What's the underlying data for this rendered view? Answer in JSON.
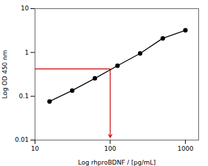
{
  "chart_data": {
    "type": "line",
    "x_label": "Log rhproBDNF / [pg/mL]",
    "y_label": "Log OD 450 nm",
    "log": true,
    "grid": false,
    "x": [
      15.6,
      31.2,
      62.5,
      125,
      250,
      500,
      1000
    ],
    "series": [
      {
        "values": [
          0.076,
          0.135,
          0.256,
          0.498,
          0.95,
          2.1,
          3.2
        ],
        "color": "#000000",
        "marker": "circle"
      }
    ],
    "xlim": [
      10,
      1500
    ],
    "ylim": [
      0.01,
      10
    ],
    "xticks": [
      10,
      100,
      1000
    ],
    "yticks": [
      0.01,
      0.1,
      1,
      10
    ],
    "crosshair": {
      "x": 100,
      "y": 0.42,
      "y_end": 0.0115,
      "color": "#cc0000"
    }
  }
}
